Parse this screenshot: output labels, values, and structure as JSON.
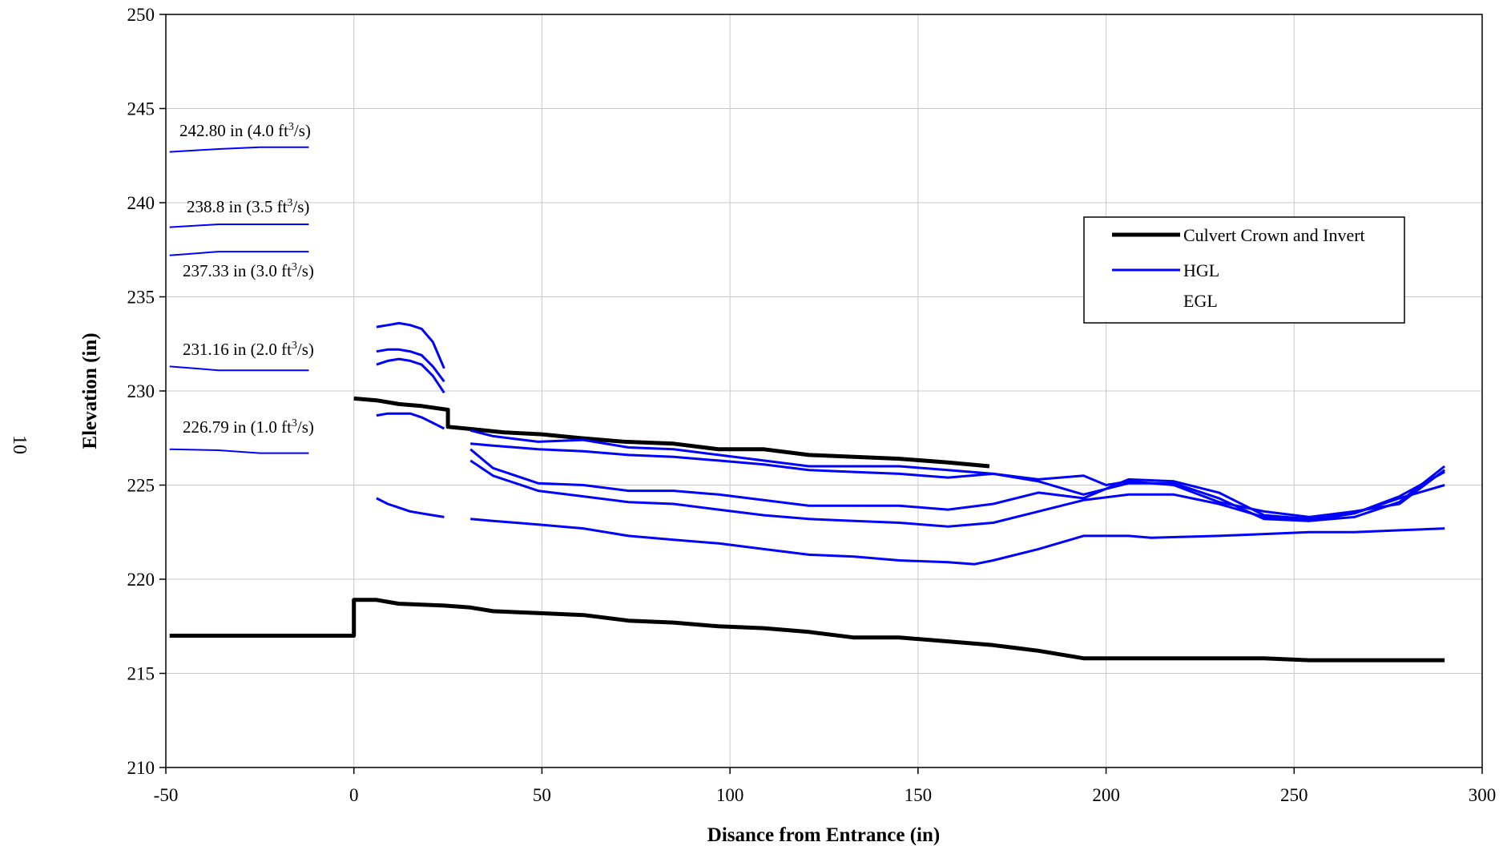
{
  "page_number": "10",
  "chart_data": {
    "type": "line",
    "xlabel": "Disance from Entrance (in)",
    "ylabel": "Elevation (in)",
    "xlim": [
      -50,
      300
    ],
    "ylim": [
      210,
      250
    ],
    "x_ticks": [
      "-50",
      "0",
      "50",
      "100",
      "150",
      "200",
      "250",
      "300"
    ],
    "y_ticks": [
      "210",
      "215",
      "220",
      "225",
      "230",
      "235",
      "240",
      "245",
      "250"
    ],
    "grid": true,
    "legend_position": "top-right",
    "legend": [
      {
        "label": "Culvert Crown and Invert",
        "color": "#000000"
      },
      {
        "label": "HGL",
        "color": "#0000ff"
      },
      {
        "label": "EGL",
        "color": "#ffffff"
      }
    ],
    "annotations": [
      {
        "value": "242.80 in  (4.0 ft",
        "unit_sup": "3",
        "unit_end": "/s)"
      },
      {
        "value": "238.8 in (3.5 ft",
        "unit_sup": "3",
        "unit_end": "/s)"
      },
      {
        "value": "237.33 in (3.0 ft",
        "unit_sup": "3",
        "unit_end": "/s)"
      },
      {
        "value": "231.16 in (2.0 ft",
        "unit_sup": "3",
        "unit_end": "/s)"
      },
      {
        "value": "226.79 in (1.0 ft",
        "unit_sup": "3",
        "unit_end": "/s)"
      }
    ],
    "headwater_lines": [
      {
        "color": "#0000ff",
        "points": [
          [
            -49,
            242.7
          ],
          [
            -36,
            242.85
          ],
          [
            -25,
            242.95
          ],
          [
            -12,
            242.95
          ]
        ]
      },
      {
        "color": "#0000ff",
        "points": [
          [
            -49,
            238.7
          ],
          [
            -36,
            238.85
          ],
          [
            -25,
            238.85
          ],
          [
            -12,
            238.85
          ]
        ]
      },
      {
        "color": "#0000ff",
        "points": [
          [
            -49,
            237.2
          ],
          [
            -36,
            237.4
          ],
          [
            -25,
            237.4
          ],
          [
            -12,
            237.4
          ]
        ]
      },
      {
        "color": "#0000ff",
        "points": [
          [
            -49,
            231.3
          ],
          [
            -36,
            231.1
          ],
          [
            -25,
            231.1
          ],
          [
            -12,
            231.1
          ]
        ]
      },
      {
        "color": "#0000ff",
        "points": [
          [
            -49,
            226.9
          ],
          [
            -36,
            226.85
          ],
          [
            -25,
            226.7
          ],
          [
            -12,
            226.7
          ]
        ]
      }
    ],
    "series": [
      {
        "name": "Culvert Crown and Invert",
        "color": "#000000",
        "width": 5,
        "points": [
          [
            0,
            229.6
          ],
          [
            6,
            229.5
          ],
          [
            12,
            229.3
          ],
          [
            18,
            229.2
          ],
          [
            25,
            229.0
          ],
          [
            25,
            228.1
          ],
          [
            30,
            228.0
          ],
          [
            40,
            227.8
          ],
          [
            50,
            227.7
          ],
          [
            60,
            227.5
          ],
          [
            72,
            227.3
          ],
          [
            85,
            227.2
          ],
          [
            97,
            226.9
          ],
          [
            109,
            226.9
          ],
          [
            121,
            226.6
          ],
          [
            133,
            226.5
          ],
          [
            145,
            226.4
          ],
          [
            158,
            226.2
          ],
          [
            169,
            226.0
          ]
        ]
      },
      {
        "name": "Culvert Crown and Invert",
        "color": "#000000",
        "width": 5,
        "points": [
          [
            -49,
            217.0
          ],
          [
            0,
            217.0
          ],
          [
            0,
            218.9
          ],
          [
            6,
            218.9
          ],
          [
            12,
            218.7
          ],
          [
            24,
            218.6
          ],
          [
            31,
            218.5
          ],
          [
            37,
            218.3
          ],
          [
            49,
            218.2
          ],
          [
            61,
            218.1
          ],
          [
            73,
            217.8
          ],
          [
            85,
            217.7
          ],
          [
            97,
            217.5
          ],
          [
            109,
            217.4
          ],
          [
            121,
            217.2
          ],
          [
            133,
            216.9
          ],
          [
            145,
            216.9
          ],
          [
            158,
            216.7
          ],
          [
            170,
            216.5
          ],
          [
            182,
            216.2
          ],
          [
            194,
            215.8
          ],
          [
            206,
            215.8
          ],
          [
            218,
            215.8
          ],
          [
            230,
            215.8
          ],
          [
            242,
            215.8
          ],
          [
            254,
            215.7
          ],
          [
            266,
            215.7
          ],
          [
            278,
            215.7
          ],
          [
            290,
            215.7
          ]
        ]
      },
      {
        "name": "HGL",
        "color": "#0000ff",
        "width": 3,
        "points": [
          [
            6,
            233.4
          ],
          [
            9,
            233.5
          ],
          [
            12,
            233.6
          ],
          [
            15,
            233.5
          ],
          [
            18,
            233.3
          ],
          [
            21,
            232.6
          ],
          [
            24,
            231.2
          ]
        ]
      },
      {
        "name": "HGL",
        "color": "#0000ff",
        "width": 3,
        "points": [
          [
            6,
            232.1
          ],
          [
            9,
            232.2
          ],
          [
            12,
            232.2
          ],
          [
            15,
            232.1
          ],
          [
            18,
            231.9
          ],
          [
            21,
            231.3
          ],
          [
            24,
            230.5
          ]
        ]
      },
      {
        "name": "HGL",
        "color": "#0000ff",
        "width": 3,
        "points": [
          [
            6,
            231.4
          ],
          [
            9,
            231.6
          ],
          [
            12,
            231.7
          ],
          [
            15,
            231.6
          ],
          [
            18,
            231.4
          ],
          [
            21,
            230.8
          ],
          [
            24,
            229.9
          ]
        ]
      },
      {
        "name": "HGL",
        "color": "#0000ff",
        "width": 3,
        "points": [
          [
            6,
            228.7
          ],
          [
            9,
            228.8
          ],
          [
            12,
            228.8
          ],
          [
            15,
            228.8
          ],
          [
            18,
            228.6
          ],
          [
            21,
            228.3
          ],
          [
            24,
            228.0
          ]
        ]
      },
      {
        "name": "HGL",
        "color": "#0000ff",
        "width": 3,
        "points": [
          [
            6,
            224.3
          ],
          [
            9,
            224.0
          ],
          [
            12,
            223.8
          ],
          [
            15,
            223.6
          ],
          [
            18,
            223.5
          ],
          [
            21,
            223.4
          ],
          [
            24,
            223.3
          ]
        ]
      },
      {
        "name": "HGL",
        "color": "#0000ff",
        "width": 3,
        "points": [
          [
            31,
            227.2
          ],
          [
            37,
            227.1
          ],
          [
            49,
            226.9
          ],
          [
            61,
            226.8
          ],
          [
            73,
            226.6
          ],
          [
            85,
            226.5
          ],
          [
            97,
            226.3
          ],
          [
            109,
            226.1
          ],
          [
            121,
            225.8
          ],
          [
            133,
            225.7
          ],
          [
            145,
            225.6
          ],
          [
            158,
            225.4
          ],
          [
            170,
            225.6
          ],
          [
            182,
            225.3
          ],
          [
            194,
            225.5
          ],
          [
            200,
            225.0
          ],
          [
            206,
            225.2
          ],
          [
            218,
            225.0
          ],
          [
            230,
            224.1
          ],
          [
            242,
            223.6
          ],
          [
            254,
            223.3
          ],
          [
            266,
            223.6
          ],
          [
            278,
            224.0
          ],
          [
            290,
            225.8
          ]
        ]
      },
      {
        "name": "HGL",
        "color": "#0000ff",
        "width": 3,
        "points": [
          [
            31,
            227.9
          ],
          [
            37,
            227.6
          ],
          [
            49,
            227.3
          ],
          [
            61,
            227.4
          ],
          [
            73,
            227.0
          ],
          [
            85,
            226.9
          ],
          [
            97,
            226.6
          ],
          [
            109,
            226.3
          ],
          [
            121,
            226.0
          ],
          [
            133,
            226.0
          ],
          [
            145,
            226.0
          ],
          [
            158,
            225.8
          ],
          [
            170,
            225.6
          ],
          [
            182,
            225.2
          ],
          [
            194,
            224.5
          ],
          [
            206,
            225.1
          ],
          [
            218,
            225.1
          ],
          [
            230,
            224.3
          ],
          [
            242,
            223.2
          ],
          [
            254,
            223.1
          ],
          [
            266,
            223.3
          ],
          [
            278,
            224.1
          ],
          [
            290,
            226.0
          ]
        ]
      },
      {
        "name": "HGL",
        "color": "#0000ff",
        "width": 3,
        "points": [
          [
            31,
            226.9
          ],
          [
            37,
            225.9
          ],
          [
            49,
            225.1
          ],
          [
            61,
            225.0
          ],
          [
            73,
            224.7
          ],
          [
            85,
            224.7
          ],
          [
            97,
            224.5
          ],
          [
            109,
            224.2
          ],
          [
            121,
            223.9
          ],
          [
            133,
            223.9
          ],
          [
            145,
            223.9
          ],
          [
            158,
            223.7
          ],
          [
            170,
            224.0
          ],
          [
            182,
            224.6
          ],
          [
            194,
            224.3
          ],
          [
            206,
            225.3
          ],
          [
            218,
            225.2
          ],
          [
            230,
            224.6
          ],
          [
            242,
            223.4
          ],
          [
            254,
            223.2
          ],
          [
            266,
            223.5
          ],
          [
            278,
            224.4
          ],
          [
            290,
            225.7
          ]
        ]
      },
      {
        "name": "HGL",
        "color": "#0000ff",
        "width": 3,
        "points": [
          [
            31,
            226.3
          ],
          [
            37,
            225.5
          ],
          [
            49,
            224.7
          ],
          [
            61,
            224.4
          ],
          [
            73,
            224.1
          ],
          [
            85,
            224.0
          ],
          [
            97,
            223.7
          ],
          [
            109,
            223.4
          ],
          [
            121,
            223.2
          ],
          [
            133,
            223.1
          ],
          [
            145,
            223.0
          ],
          [
            158,
            222.8
          ],
          [
            170,
            223.0
          ],
          [
            182,
            223.6
          ],
          [
            194,
            224.2
          ],
          [
            206,
            224.5
          ],
          [
            218,
            224.5
          ],
          [
            230,
            224.0
          ],
          [
            242,
            223.3
          ],
          [
            254,
            223.1
          ],
          [
            266,
            223.5
          ],
          [
            278,
            224.3
          ],
          [
            290,
            225.0
          ]
        ]
      },
      {
        "name": "HGL",
        "color": "#0000ff",
        "width": 3,
        "points": [
          [
            31,
            223.2
          ],
          [
            37,
            223.1
          ],
          [
            49,
            222.9
          ],
          [
            61,
            222.7
          ],
          [
            73,
            222.3
          ],
          [
            85,
            222.1
          ],
          [
            97,
            221.9
          ],
          [
            109,
            221.6
          ],
          [
            121,
            221.3
          ],
          [
            133,
            221.2
          ],
          [
            145,
            221.0
          ],
          [
            158,
            220.9
          ],
          [
            165,
            220.8
          ],
          [
            170,
            221.0
          ],
          [
            182,
            221.6
          ],
          [
            194,
            222.3
          ],
          [
            206,
            222.3
          ],
          [
            212,
            222.2
          ],
          [
            230,
            222.3
          ],
          [
            242,
            222.4
          ],
          [
            254,
            222.5
          ],
          [
            266,
            222.5
          ],
          [
            278,
            222.6
          ],
          [
            290,
            222.7
          ]
        ]
      }
    ]
  }
}
